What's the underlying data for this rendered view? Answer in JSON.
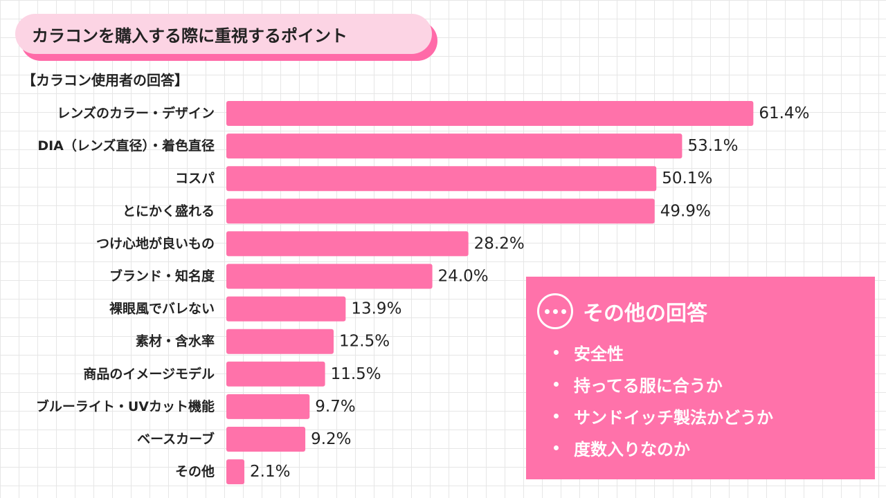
{
  "header": {
    "title": "カラコンを購入する際に重視するポイント",
    "subtitle": "【カラコン使用者の回答】"
  },
  "chart_data": {
    "type": "bar",
    "orientation": "horizontal",
    "title": "カラコンを購入する際に重視するポイント",
    "subtitle": "【カラコン使用者の回答】",
    "categories": [
      "レンズのカラー・デザイン",
      "DIA（レンズ直径）・着色直径",
      "コスパ",
      "とにかく盛れる",
      "つけ心地が良いもの",
      "ブランド・知名度",
      "裸眼風でバレない",
      "素材・含水率",
      "商品のイメージモデル",
      "ブルーライト・UVカット機能",
      "ベースカーブ",
      "その他"
    ],
    "values": [
      61.4,
      53.1,
      50.1,
      49.9,
      28.2,
      24.0,
      13.9,
      12.5,
      11.5,
      9.7,
      9.2,
      2.1
    ],
    "value_labels": [
      "61.4%",
      "53.1%",
      "50.1%",
      "49.9%",
      "28.2%",
      "24.0%",
      "13.9%",
      "12.5%",
      "11.5%",
      "9.7%",
      "9.2%",
      "2.1%"
    ],
    "unit": "%",
    "xlim": [
      0,
      100
    ],
    "grid": false,
    "legend": "none"
  },
  "other_answers": {
    "title": "その他の回答",
    "icon": "more-dots-icon",
    "items": [
      "安全性",
      "持ってる服に合うか",
      "サンドイッチ製法かどうか",
      "度数入りなのか"
    ]
  },
  "colors": {
    "bar": "#ff72aa",
    "title_fill": "#fcd4e4",
    "title_shadow": "#ff6aa8",
    "panel": "#ff72aa",
    "grid": "#e6e6e6"
  }
}
